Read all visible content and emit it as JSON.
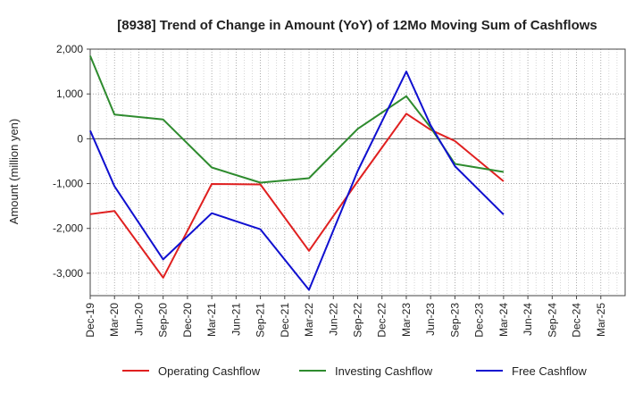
{
  "chart_data": {
    "type": "line",
    "title": "[8938]  Trend of Change in Amount (YoY) of 12Mo Moving Sum of Cashflows",
    "xlabel": "",
    "ylabel": "Amount (million yen)",
    "ylim": [
      -3500,
      2000
    ],
    "yticks": [
      2000,
      1000,
      0,
      -1000,
      -2000,
      -3000
    ],
    "ytick_labels": [
      "2,000",
      "1,000",
      "0",
      "-1,000",
      "-2,000",
      "-3,000"
    ],
    "categories": [
      "Dec-19",
      "Mar-20",
      "Jun-20",
      "Sep-20",
      "Dec-20",
      "Mar-21",
      "Jun-21",
      "Sep-21",
      "Dec-21",
      "Mar-22",
      "Jun-22",
      "Sep-22",
      "Dec-22",
      "Mar-23",
      "Jun-23",
      "Sep-23",
      "Dec-23",
      "Mar-24",
      "Jun-24",
      "Sep-24",
      "Dec-24",
      "Mar-25"
    ],
    "grid": true,
    "legend_position": "bottom",
    "series": [
      {
        "name": "Operating Cashflow",
        "color": "#e02020",
        "values": [
          -1680,
          -1610,
          null,
          -3100,
          null,
          -1010,
          null,
          -1020,
          null,
          -2500,
          null,
          -950,
          null,
          560,
          200,
          -50,
          null,
          -950,
          null,
          null,
          null,
          null
        ]
      },
      {
        "name": "Investing Cashflow",
        "color": "#2e8b2e",
        "values": [
          1850,
          540,
          null,
          430,
          null,
          -640,
          null,
          -980,
          null,
          -880,
          null,
          220,
          null,
          950,
          250,
          -560,
          null,
          -740,
          null,
          null,
          null,
          null
        ]
      },
      {
        "name": "Free Cashflow",
        "color": "#1010d0",
        "values": [
          180,
          -1060,
          null,
          -2690,
          null,
          -1660,
          null,
          -2020,
          null,
          -3370,
          null,
          -720,
          null,
          1500,
          300,
          -610,
          null,
          -1690,
          null,
          null,
          null,
          null
        ]
      }
    ]
  }
}
